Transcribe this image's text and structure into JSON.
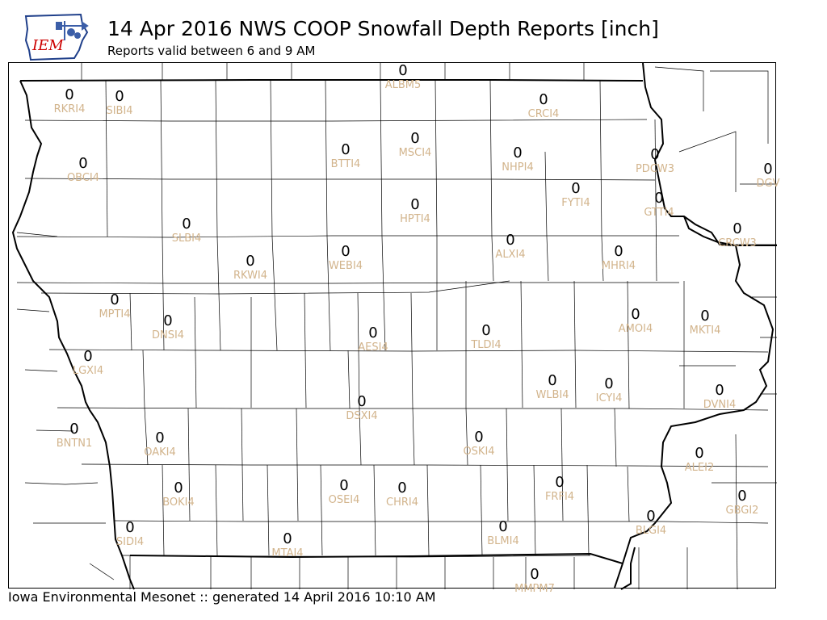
{
  "header": {
    "title": "14 Apr 2016 NWS COOP Snowfall Depth Reports [inch]",
    "subtitle": "Reports valid between 6 and 9 AM",
    "logo_text": "IEM"
  },
  "footer": {
    "text": "Iowa Environmental Mesonet :: generated 14 April 2016 10:10 AM"
  },
  "colors": {
    "station_id": "#d2b48c",
    "value": "#000000",
    "logo_text": "#cc0000",
    "logo_state": "#ffffff"
  },
  "map": {
    "legend": "none",
    "stations": [
      {
        "id": "ALBM5",
        "value": "0"
      },
      {
        "id": "RKRI4",
        "value": "0"
      },
      {
        "id": "SIBI4",
        "value": "0"
      },
      {
        "id": "CRCI4",
        "value": "0"
      },
      {
        "id": "OBCI4",
        "value": "0"
      },
      {
        "id": "BTTI4",
        "value": "0"
      },
      {
        "id": "MSCI4",
        "value": "0"
      },
      {
        "id": "NHPI4",
        "value": "0"
      },
      {
        "id": "PDCW3",
        "value": "0"
      },
      {
        "id": "DGV",
        "value": "0"
      },
      {
        "id": "FYTI4",
        "value": "0"
      },
      {
        "id": "GTTI4",
        "value": "0"
      },
      {
        "id": "HPTI4",
        "value": "0"
      },
      {
        "id": "SLBI4",
        "value": "0"
      },
      {
        "id": "CRCW3",
        "value": "0"
      },
      {
        "id": "ALXI4",
        "value": "0"
      },
      {
        "id": "WEBI4",
        "value": "0"
      },
      {
        "id": "RKWI4",
        "value": "0"
      },
      {
        "id": "MHRI4",
        "value": "0"
      },
      {
        "id": "MPTI4",
        "value": "0"
      },
      {
        "id": "DNSI4",
        "value": "0"
      },
      {
        "id": "AMOI4",
        "value": "0"
      },
      {
        "id": "MKTI4",
        "value": "0"
      },
      {
        "id": "AESI4",
        "value": "0"
      },
      {
        "id": "TLDI4",
        "value": "0"
      },
      {
        "id": "LGXI4",
        "value": "0"
      },
      {
        "id": "WLBI4",
        "value": "0"
      },
      {
        "id": "ICYI4",
        "value": "0"
      },
      {
        "id": "DVNI4",
        "value": "0"
      },
      {
        "id": "DSXI4",
        "value": "0"
      },
      {
        "id": "BNTN1",
        "value": "0"
      },
      {
        "id": "OAKI4",
        "value": "0"
      },
      {
        "id": "OSKI4",
        "value": "0"
      },
      {
        "id": "ALEI2",
        "value": "0"
      },
      {
        "id": "FRFI4",
        "value": "0"
      },
      {
        "id": "BOKI4",
        "value": "0"
      },
      {
        "id": "OSEI4",
        "value": "0"
      },
      {
        "id": "CHRI4",
        "value": "0"
      },
      {
        "id": "GBGI2",
        "value": "0"
      },
      {
        "id": "SIDI4",
        "value": "0"
      },
      {
        "id": "BLGI4",
        "value": "0"
      },
      {
        "id": "BLMI4",
        "value": "0"
      },
      {
        "id": "MTAI4",
        "value": "0"
      },
      {
        "id": "MMPM7",
        "value": "0"
      }
    ]
  }
}
